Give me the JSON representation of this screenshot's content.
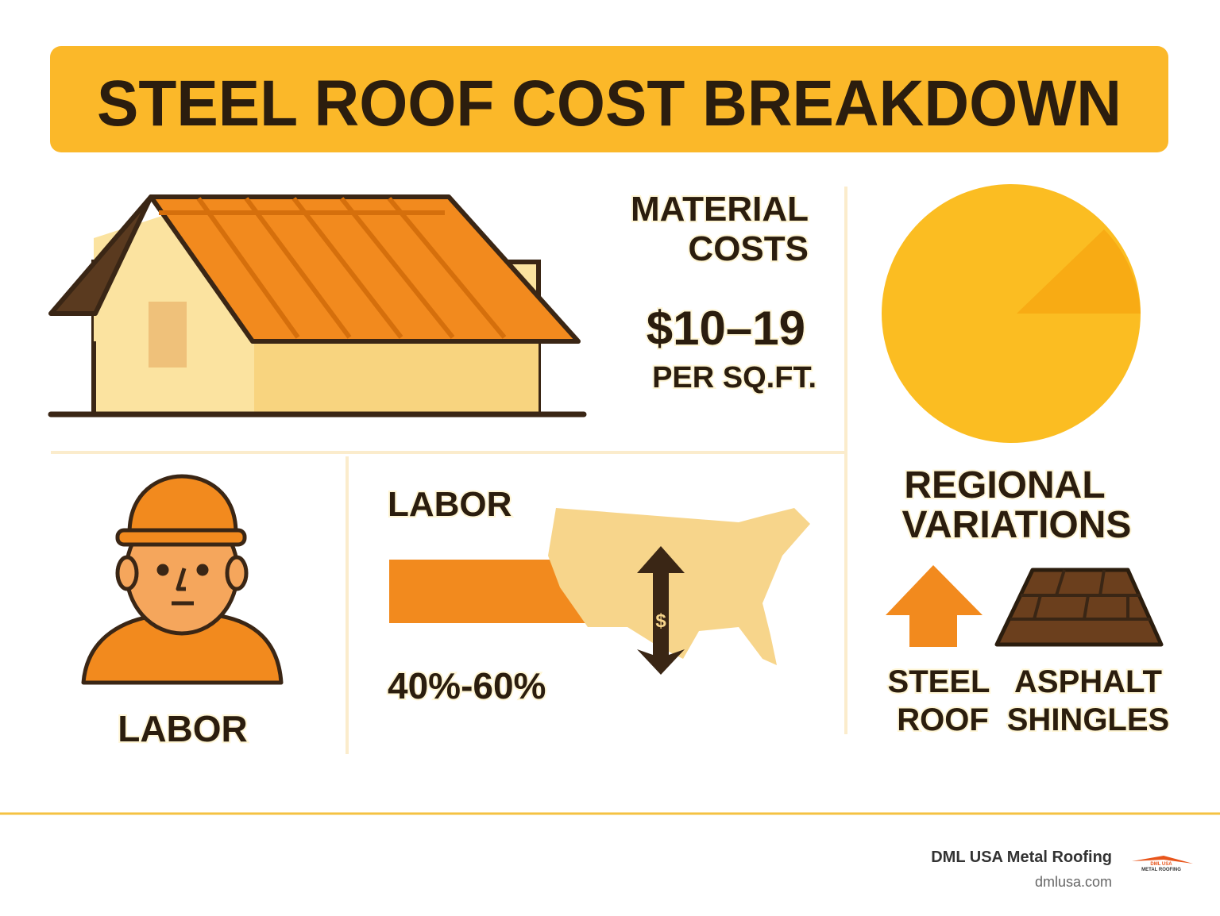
{
  "header": {
    "title": "STEEL ROOF COST BREAKDOWN"
  },
  "material_costs": {
    "heading_lines": [
      "MATERIAL",
      "COSTS"
    ],
    "price": "$10–19",
    "unit": "PER SQ.FT."
  },
  "labor_worker": {
    "label": "LABOR"
  },
  "labor_share": {
    "heading": "LABOR",
    "range": "40%-60%",
    "arrow_symbol": "$"
  },
  "regional": {
    "heading_lines": [
      "REGIONAL",
      "VARIATIONS"
    ],
    "items": [
      {
        "lines": [
          "STEEL",
          "ROOF"
        ]
      },
      {
        "lines": [
          "ASPHALT",
          "SHINGLES"
        ]
      }
    ]
  },
  "footer": {
    "company": "DML USA Metal Roofing",
    "website": "dmlusa.com",
    "logo_lines": [
      "DML USA",
      "METAL ROOFING"
    ]
  }
}
